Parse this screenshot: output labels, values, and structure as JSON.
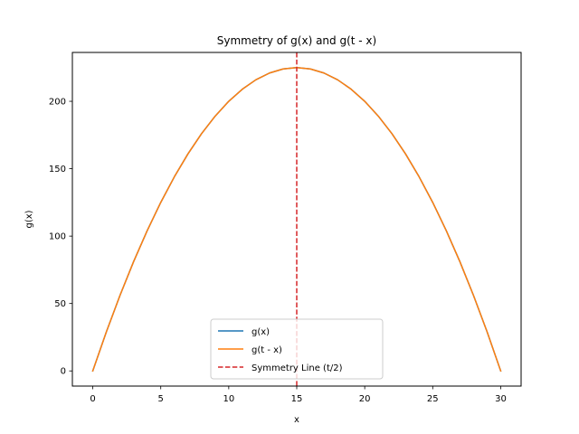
{
  "chart_data": {
    "type": "line",
    "title": "Symmetry of g(x) and g(t - x)",
    "xlabel": "x",
    "ylabel": "g(x)",
    "xlim": [
      -1.5,
      31.5
    ],
    "ylim": [
      -11.25,
      236.25
    ],
    "xticks": [
      0,
      5,
      10,
      15,
      20,
      25,
      30
    ],
    "yticks": [
      0,
      50,
      100,
      150,
      200
    ],
    "grid": false,
    "legend_position": "lower center",
    "series": [
      {
        "name": "g(x)",
        "color": "#1f77b4",
        "style": "solid",
        "x": [
          0,
          1,
          2,
          3,
          4,
          5,
          6,
          7,
          8,
          9,
          10,
          11,
          12,
          13,
          14,
          15,
          16,
          17,
          18,
          19,
          20,
          21,
          22,
          23,
          24,
          25,
          26,
          27,
          28,
          29,
          30
        ],
        "y": [
          0,
          29,
          56,
          81,
          104,
          125,
          144,
          161,
          176,
          189,
          200,
          209,
          216,
          221,
          224,
          225,
          224,
          221,
          216,
          209,
          200,
          189,
          176,
          161,
          144,
          125,
          104,
          81,
          56,
          29,
          0
        ]
      },
      {
        "name": "g(t - x)",
        "color": "#ff7f0e",
        "style": "solid",
        "x": [
          0,
          1,
          2,
          3,
          4,
          5,
          6,
          7,
          8,
          9,
          10,
          11,
          12,
          13,
          14,
          15,
          16,
          17,
          18,
          19,
          20,
          21,
          22,
          23,
          24,
          25,
          26,
          27,
          28,
          29,
          30
        ],
        "y": [
          0,
          29,
          56,
          81,
          104,
          125,
          144,
          161,
          176,
          189,
          200,
          209,
          216,
          221,
          224,
          225,
          224,
          221,
          216,
          209,
          200,
          189,
          176,
          161,
          144,
          125,
          104,
          81,
          56,
          29,
          0
        ]
      }
    ],
    "vlines": [
      {
        "name": "Symmetry Line (t/2)",
        "x": 15,
        "color": "#d62728",
        "style": "dashed"
      }
    ]
  }
}
